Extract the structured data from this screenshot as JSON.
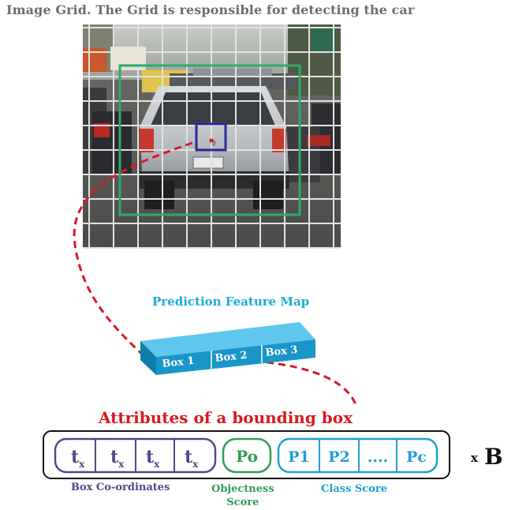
{
  "title": "Image Grid. The Grid is responsible for detecting the car",
  "feature_map": {
    "label": "Prediction Feature Map",
    "boxes": [
      "Box 1",
      "Box 2",
      "Box 3"
    ]
  },
  "attributes": {
    "title": "Attributes of a bounding box",
    "coords": {
      "cells": [
        {
          "main": "t",
          "sub": "x"
        },
        {
          "main": "t",
          "sub": "x"
        },
        {
          "main": "t",
          "sub": "x"
        },
        {
          "main": "t",
          "sub": "x"
        }
      ],
      "caption": "Box Co-ordinates"
    },
    "objectness": {
      "cell": "Po",
      "caption_line1": "Objectness",
      "caption_line2": "Score"
    },
    "class_score": {
      "cells": [
        "P1",
        "P2",
        "....",
        "Pc"
      ],
      "caption": "Class Score"
    },
    "multiplier": {
      "x": "x",
      "b": "B"
    }
  },
  "colors": {
    "title": "#6d6d6d",
    "feature_label": "#1ea9d8",
    "attr_title": "#d8191f",
    "coords": "#4a4a8c",
    "objectness": "#2f9e5a",
    "class_score": "#1f9fd5",
    "grid_green": "#2faa6a",
    "grid_blue": "#2a2a9a",
    "dashed": "#d8191f"
  }
}
